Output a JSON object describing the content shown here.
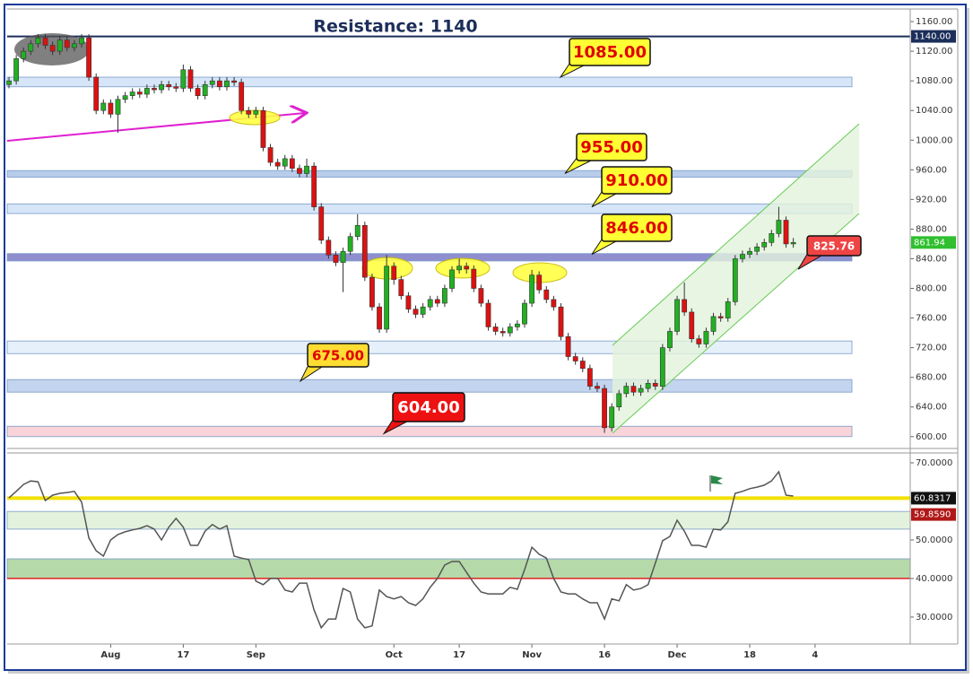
{
  "chart_data": [
    {
      "type": "candlestick",
      "title": "Resistance: 1140",
      "resistance": 1140,
      "xlim": [
        -0.25,
        124.1
      ],
      "ylim": [
        584,
        1177
      ],
      "yticks": [
        {
          "value": 600,
          "label": "600.00"
        },
        {
          "value": 640,
          "label": "640.00"
        },
        {
          "value": 680,
          "label": "680.00"
        },
        {
          "value": 720,
          "label": "720.00"
        },
        {
          "value": 760,
          "label": "760.00"
        },
        {
          "value": 800,
          "label": "800.00"
        },
        {
          "value": 840,
          "label": "840.00"
        },
        {
          "value": 880,
          "label": "880.00"
        },
        {
          "value": 920,
          "label": "920.00"
        },
        {
          "value": 960,
          "label": "960.00"
        },
        {
          "value": 1000,
          "label": "1000.00"
        },
        {
          "value": 1040,
          "label": "1040.00"
        },
        {
          "value": 1080,
          "label": "1080.00"
        },
        {
          "value": 1120,
          "label": "1120.00"
        },
        {
          "value": 1160,
          "label": "1160.00"
        }
      ],
      "up_color": "#22b022",
      "down_color": "#dd1111",
      "x": [
        0,
        1,
        2,
        3,
        4,
        5,
        6,
        7,
        8,
        9,
        10,
        11,
        12,
        13,
        14,
        15,
        16,
        17,
        18,
        19,
        20,
        21,
        22,
        23,
        24,
        25,
        26,
        27,
        28,
        29,
        30,
        31,
        32,
        33,
        34,
        35,
        36,
        37,
        38,
        39,
        40,
        41,
        42,
        43,
        44,
        45,
        46,
        47,
        48,
        49,
        50,
        51,
        52,
        53,
        54,
        55,
        56,
        57,
        58,
        59,
        60,
        61,
        62,
        63,
        64,
        65,
        66,
        67,
        68,
        69,
        70,
        71,
        72,
        73,
        74,
        75,
        76,
        77,
        78,
        79,
        80,
        81,
        82,
        83,
        84,
        85,
        86,
        87,
        88,
        89,
        90,
        91,
        92,
        93,
        94,
        95,
        96,
        97,
        98,
        99,
        100,
        101,
        102,
        103,
        104,
        105,
        106,
        107,
        108
      ],
      "open": [
        1075,
        1080,
        1110,
        1120,
        1130,
        1138,
        1128,
        1120,
        1135,
        1125,
        1130,
        1138,
        1085,
        1040,
        1050,
        1035,
        1055,
        1060,
        1065,
        1062,
        1070,
        1068,
        1075,
        1072,
        1070,
        1095,
        1070,
        1060,
        1075,
        1080,
        1072,
        1080,
        1078,
        1040,
        1035,
        1040,
        990,
        970,
        965,
        975,
        962,
        955,
        965,
        910,
        865,
        845,
        835,
        850,
        870,
        885,
        815,
        775,
        745,
        830,
        812,
        790,
        772,
        765,
        775,
        785,
        780,
        800,
        825,
        830,
        826,
        800,
        780,
        748,
        742,
        740,
        748,
        752,
        780,
        818,
        798,
        785,
        775,
        735,
        708,
        702,
        692,
        668,
        665,
        612,
        640,
        658,
        668,
        660,
        665,
        672,
        668,
        720,
        742,
        785,
        768,
        732,
        725,
        742,
        762,
        760,
        782,
        840,
        846,
        850,
        856,
        862,
        874,
        892,
        860
      ],
      "high": [
        1085,
        1115,
        1125,
        1135,
        1143,
        1143,
        1133,
        1140,
        1140,
        1135,
        1143,
        1143,
        1090,
        1055,
        1055,
        1060,
        1065,
        1070,
        1070,
        1075,
        1075,
        1080,
        1080,
        1077,
        1102,
        1100,
        1075,
        1080,
        1085,
        1085,
        1085,
        1085,
        1083,
        1045,
        1045,
        1045,
        995,
        975,
        980,
        980,
        967,
        975,
        970,
        915,
        870,
        850,
        855,
        875,
        900,
        890,
        820,
        780,
        845,
        835,
        817,
        795,
        777,
        780,
        790,
        790,
        805,
        830,
        840,
        835,
        831,
        805,
        785,
        753,
        747,
        753,
        757,
        785,
        825,
        823,
        803,
        790,
        780,
        740,
        713,
        707,
        697,
        673,
        670,
        645,
        663,
        673,
        673,
        670,
        677,
        677,
        725,
        747,
        790,
        808,
        773,
        737,
        747,
        767,
        767,
        787,
        845,
        851,
        855,
        861,
        867,
        879,
        910,
        897,
        868
      ],
      "low": [
        1070,
        1075,
        1105,
        1115,
        1125,
        1123,
        1115,
        1115,
        1120,
        1120,
        1125,
        1080,
        1035,
        1035,
        1030,
        1010,
        1050,
        1055,
        1057,
        1057,
        1063,
        1063,
        1067,
        1065,
        1065,
        1065,
        1055,
        1055,
        1070,
        1067,
        1067,
        1073,
        1035,
        1030,
        1030,
        985,
        965,
        960,
        960,
        957,
        950,
        950,
        905,
        860,
        840,
        830,
        795,
        845,
        865,
        810,
        770,
        740,
        740,
        805,
        785,
        767,
        760,
        760,
        770,
        775,
        775,
        795,
        820,
        820,
        795,
        775,
        743,
        737,
        735,
        735,
        743,
        747,
        775,
        793,
        780,
        770,
        730,
        703,
        697,
        687,
        663,
        660,
        605,
        607,
        635,
        653,
        655,
        655,
        660,
        663,
        663,
        715,
        737,
        763,
        727,
        720,
        720,
        737,
        755,
        755,
        777,
        835,
        841,
        845,
        851,
        857,
        869,
        855,
        855
      ],
      "close": [
        1080,
        1110,
        1120,
        1130,
        1138,
        1128,
        1120,
        1135,
        1125,
        1130,
        1138,
        1085,
        1040,
        1050,
        1035,
        1055,
        1060,
        1065,
        1062,
        1070,
        1068,
        1075,
        1072,
        1070,
        1095,
        1070,
        1060,
        1075,
        1080,
        1072,
        1080,
        1078,
        1040,
        1035,
        1040,
        990,
        970,
        965,
        975,
        962,
        955,
        965,
        910,
        865,
        845,
        835,
        850,
        870,
        885,
        815,
        775,
        745,
        830,
        812,
        790,
        772,
        765,
        775,
        785,
        780,
        800,
        825,
        830,
        826,
        800,
        780,
        748,
        742,
        740,
        748,
        752,
        780,
        818,
        798,
        785,
        775,
        735,
        708,
        702,
        692,
        668,
        665,
        612,
        640,
        658,
        668,
        660,
        665,
        672,
        668,
        720,
        742,
        785,
        768,
        732,
        725,
        742,
        762,
        760,
        782,
        840,
        846,
        850,
        856,
        862,
        874,
        892,
        860,
        862
      ],
      "zones": [
        {
          "from": 1072,
          "to": 1085,
          "color": "#d6e6f8"
        },
        {
          "from": 950,
          "to": 959,
          "color": "#b8cdea"
        },
        {
          "from": 901,
          "to": 914,
          "color": "#d6e6f8"
        },
        {
          "from": 837,
          "to": 847,
          "color": "#8f8fd0"
        },
        {
          "from": 712,
          "to": 729,
          "color": "#e6f0fa"
        },
        {
          "from": 660,
          "to": 677,
          "color": "#c3d4ee"
        },
        {
          "from": 600,
          "to": 614,
          "color": "#f8d4d8"
        }
      ],
      "callouts": [
        {
          "value": 1085,
          "label": "1085.00",
          "color": "#ffff33"
        },
        {
          "value": 955,
          "label": "955.00",
          "color": "#ffff33"
        },
        {
          "value": 910,
          "label": "910.00",
          "color": "#ffff33"
        },
        {
          "value": 846,
          "label": "846.00",
          "color": "#ffff33"
        },
        {
          "value": 675,
          "label": "675.00",
          "color": "#ffdd33"
        },
        {
          "value": 604,
          "label": "604.00",
          "color": "#ee1111"
        },
        {
          "value": 825.76,
          "label": "825.76",
          "color": "#ee4444"
        }
      ],
      "tags": [
        {
          "value": 1140,
          "label": "1140.00",
          "color": "#1c2e5a"
        },
        {
          "value": 861.94,
          "label": "861.94",
          "color": "#2fbf2f"
        }
      ]
    },
    {
      "type": "line",
      "xlim": [
        -0.25,
        124.1
      ],
      "ylim": [
        23.0,
        72.56
      ],
      "xticks": [
        {
          "value": 14,
          "label": "Aug"
        },
        {
          "value": 24,
          "label": "17"
        },
        {
          "value": 34,
          "label": "Sep"
        },
        {
          "value": 53,
          "label": "Oct"
        },
        {
          "value": 62,
          "label": "17"
        },
        {
          "value": 72,
          "label": "Nov"
        },
        {
          "value": 82,
          "label": "16"
        },
        {
          "value": 92,
          "label": "Dec"
        },
        {
          "value": 102,
          "label": "18"
        },
        {
          "value": 111,
          "label": "4"
        }
      ],
      "yticks": [
        {
          "value": 30,
          "label": "30.0000"
        },
        {
          "value": 40,
          "label": "40.0000"
        },
        {
          "value": 50,
          "label": "50.0000"
        },
        {
          "value": 60,
          "label": "60.0000"
        },
        {
          "value": 70,
          "label": "70.0000"
        }
      ],
      "color": "#555555",
      "x": [
        0,
        1,
        2,
        3,
        4,
        5,
        6,
        7,
        8,
        9,
        10,
        11,
        12,
        13,
        14,
        15,
        16,
        17,
        18,
        19,
        20,
        21,
        22,
        23,
        24,
        25,
        26,
        27,
        28,
        29,
        30,
        31,
        32,
        33,
        34,
        35,
        36,
        37,
        38,
        39,
        40,
        41,
        42,
        43,
        44,
        45,
        46,
        47,
        48,
        49,
        50,
        51,
        52,
        53,
        54,
        55,
        56,
        57,
        58,
        59,
        60,
        61,
        62,
        63,
        64,
        65,
        66,
        67,
        68,
        69,
        70,
        71,
        72,
        73,
        74,
        75,
        76,
        77,
        78,
        79,
        80,
        81,
        82,
        83,
        84,
        85,
        86,
        87,
        88,
        89,
        90,
        91,
        92,
        93,
        94,
        95,
        96,
        97,
        98,
        99,
        100,
        101,
        102,
        103,
        104,
        105,
        106,
        107,
        108
      ],
      "values": [
        60.9,
        62.6,
        64.4,
        65.3,
        65.1,
        60.2,
        61.6,
        62.1,
        62.3,
        62.6,
        59.8,
        50.5,
        47.2,
        45.8,
        50.0,
        51.4,
        52.1,
        52.6,
        53.0,
        53.7,
        52.8,
        50.0,
        53.3,
        55.6,
        53.3,
        48.6,
        48.6,
        52.3,
        54.0,
        52.8,
        53.7,
        45.8,
        45.3,
        44.9,
        39.3,
        38.4,
        40.0,
        40.0,
        37.0,
        36.5,
        38.8,
        38.8,
        31.9,
        27.2,
        29.5,
        29.5,
        37.4,
        36.5,
        29.5,
        27.2,
        27.7,
        37.0,
        35.3,
        34.7,
        35.3,
        33.7,
        33.0,
        34.7,
        37.7,
        40.0,
        43.5,
        44.4,
        44.4,
        41.6,
        38.8,
        36.5,
        36.0,
        36.0,
        36.0,
        37.7,
        37.2,
        42.3,
        48.1,
        46.3,
        45.3,
        40.0,
        36.5,
        36.0,
        36.0,
        34.7,
        33.7,
        33.7,
        29.5,
        34.7,
        34.2,
        38.4,
        37.0,
        37.4,
        38.4,
        44.0,
        49.8,
        50.9,
        55.1,
        52.3,
        48.6,
        48.6,
        48.1,
        52.8,
        52.6,
        54.7,
        62.1,
        62.6,
        63.3,
        63.7,
        64.2,
        65.3,
        67.7,
        61.6,
        61.4
      ],
      "zones": [
        {
          "from": 52.8,
          "to": 57.4,
          "color": "#e3f2dc"
        },
        {
          "from": 40,
          "to": 45.1,
          "color": "#b5d9a8"
        }
      ],
      "lines": [
        {
          "value": 60.8317,
          "color": "#f2e000"
        },
        {
          "value": 40,
          "color": "#dd2222"
        }
      ],
      "tags": [
        {
          "value": 60.8317,
          "label": "60.8317",
          "color": "#111111"
        },
        {
          "value": 59.859,
          "label": "59.8590",
          "color": "#b01818"
        }
      ]
    }
  ]
}
